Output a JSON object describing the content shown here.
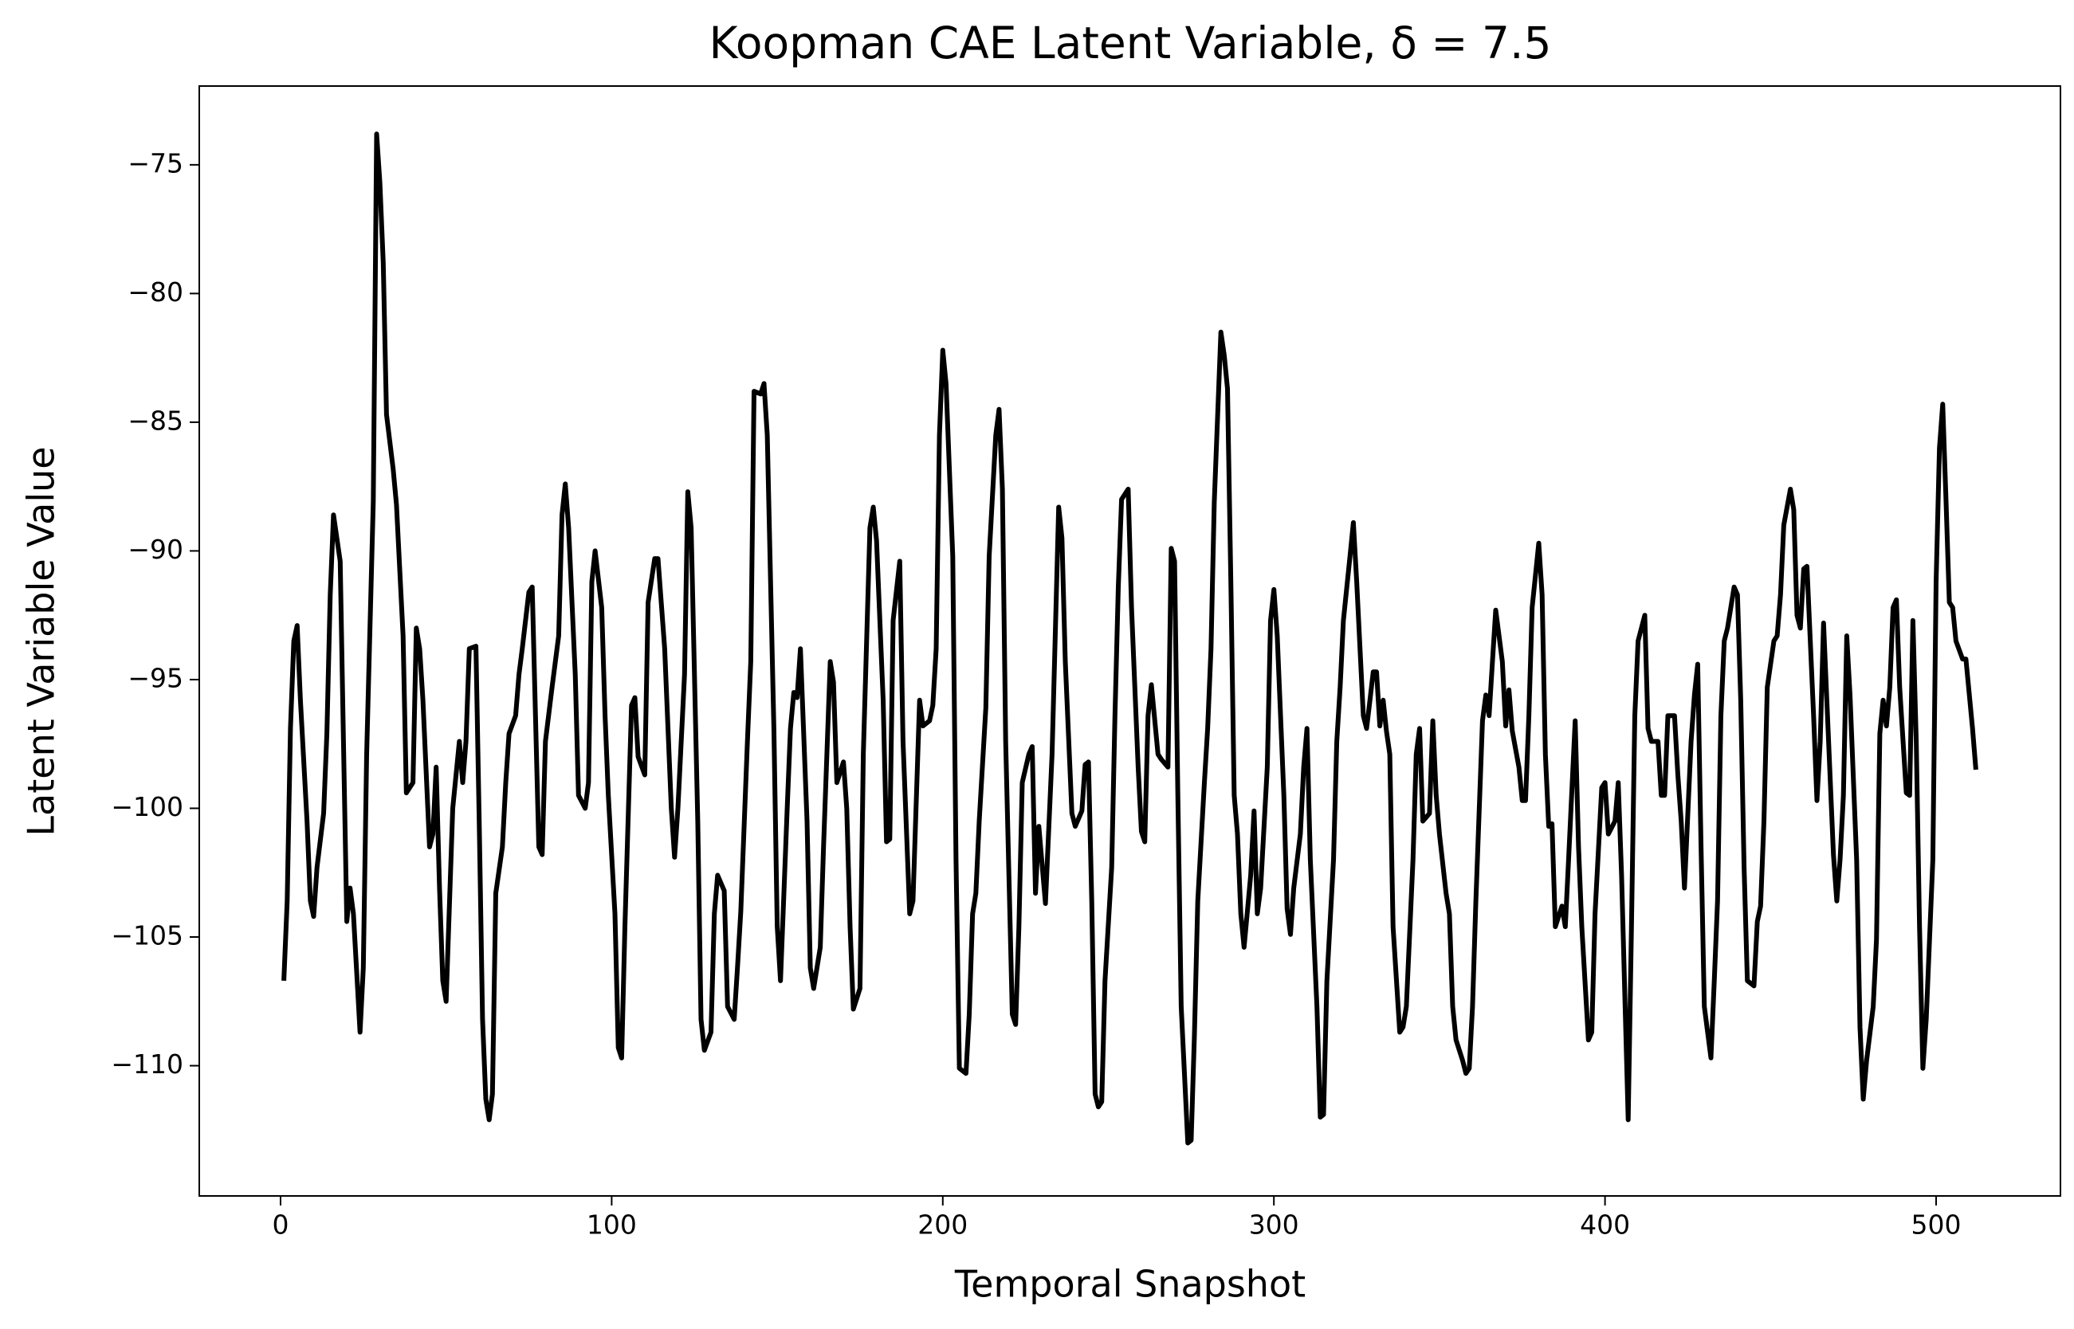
{
  "chart_data": {
    "type": "line",
    "title": "Koopman CAE Latent Variable, δ = 7.5",
    "xlabel": "Temporal Snapshot",
    "ylabel": "Latent Variable Value",
    "xlim": [
      -24.55,
      537.55
    ],
    "ylim": [
      -115.06,
      -71.94
    ],
    "xticks": [
      0,
      100,
      200,
      300,
      400,
      500
    ],
    "yticks": [
      {
        "value": -110,
        "label": "−110"
      },
      {
        "value": -105,
        "label": "−105"
      },
      {
        "value": -100,
        "label": "−100"
      },
      {
        "value": -95,
        "label": "−95"
      },
      {
        "value": -90,
        "label": "−90"
      },
      {
        "value": -85,
        "label": "−85"
      },
      {
        "value": -80,
        "label": "−80"
      },
      {
        "value": -75,
        "label": "−75"
      }
    ],
    "series": [
      {
        "color": "#000000",
        "x": [
          1,
          2,
          3,
          4,
          5,
          6,
          8,
          9,
          10,
          11,
          13,
          14,
          15,
          16,
          18,
          19,
          20,
          21,
          22,
          24,
          25,
          26,
          28,
          29,
          30,
          31,
          32,
          34,
          35,
          37,
          38,
          40,
          41,
          42,
          43,
          45,
          46,
          47,
          48,
          49,
          50,
          52,
          54,
          55,
          56,
          57,
          59,
          60,
          61,
          62,
          63,
          64,
          65,
          67,
          68,
          69,
          71,
          72,
          73,
          75,
          76,
          77,
          78,
          79,
          80,
          82,
          84,
          85,
          86,
          87,
          89,
          90,
          92,
          93,
          94,
          95,
          97,
          98,
          99,
          101,
          102,
          103,
          104,
          106,
          107,
          108,
          110,
          111,
          113,
          114,
          116,
          118,
          119,
          120,
          122,
          123,
          124,
          126,
          127,
          128,
          130,
          131,
          132,
          134,
          135,
          137,
          138,
          139,
          141,
          142,
          143,
          145,
          146,
          147,
          149,
          150,
          151,
          153,
          154,
          155,
          156,
          157,
          159,
          160,
          161,
          163,
          164,
          166,
          167,
          168,
          170,
          171,
          172,
          173,
          175,
          176,
          178,
          179,
          180,
          182,
          183,
          184,
          185,
          187,
          188,
          190,
          191,
          193,
          194,
          196,
          197,
          198,
          199,
          200,
          201,
          203,
          204,
          205,
          207,
          208,
          209,
          210,
          211,
          213,
          214,
          216,
          217,
          218,
          219,
          221,
          222,
          223,
          224,
          226,
          227,
          228,
          229,
          231,
          233,
          235,
          236,
          237,
          239,
          240,
          242,
          243,
          244,
          245,
          246,
          247,
          248,
          249,
          251,
          252,
          253,
          254,
          256,
          257,
          259,
          260,
          261,
          262,
          263,
          265,
          266,
          268,
          269,
          270,
          271,
          272,
          274,
          275,
          276,
          277,
          279,
          280,
          281,
          282,
          284,
          285,
          286,
          287,
          288,
          289,
          290,
          291,
          293,
          294,
          295,
          296,
          298,
          299,
          300,
          301,
          303,
          304,
          305,
          306,
          308,
          309,
          310,
          311,
          313,
          314,
          315,
          316,
          318,
          319,
          320,
          321,
          323,
          324,
          325,
          327,
          328,
          329,
          330,
          331,
          332,
          333,
          334,
          335,
          336,
          338,
          339,
          340,
          342,
          343,
          344,
          345,
          347,
          348,
          349,
          350,
          352,
          353,
          354,
          355,
          357,
          358,
          359,
          360,
          361,
          363,
          364,
          365,
          366,
          367,
          369,
          370,
          371,
          372,
          374,
          375,
          376,
          377,
          378,
          380,
          381,
          382,
          383,
          384,
          385,
          387,
          388,
          389,
          391,
          392,
          393,
          395,
          396,
          397,
          399,
          400,
          401,
          403,
          404,
          405,
          407,
          408,
          409,
          410,
          412,
          413,
          414,
          416,
          417,
          418,
          419,
          421,
          422,
          423,
          424,
          426,
          427,
          428,
          429,
          430,
          432,
          433,
          434,
          435,
          436,
          437,
          439,
          440,
          441,
          442,
          443,
          445,
          446,
          447,
          448,
          449,
          451,
          452,
          453,
          454,
          456,
          457,
          458,
          459,
          460,
          461,
          463,
          464,
          465,
          466,
          467,
          469,
          470,
          471,
          472,
          473,
          474,
          476,
          477,
          478,
          479,
          481,
          482,
          483,
          484,
          485,
          486,
          487,
          488,
          489,
          491,
          492,
          493,
          494,
          495,
          496,
          497,
          499,
          500,
          501,
          502,
          503,
          504,
          505,
          506,
          508,
          509,
          511,
          512
        ],
        "values": [
          -106.7,
          -103.6,
          -96.9,
          -93.5,
          -92.9,
          -95.8,
          -100.5,
          -103.6,
          -104.2,
          -102.3,
          -100.2,
          -97.1,
          -91.7,
          -88.6,
          -90.4,
          -97.4,
          -104.4,
          -103.1,
          -104.1,
          -108.7,
          -106.2,
          -97.9,
          -88.1,
          -73.8,
          -75.7,
          -78.8,
          -84.7,
          -86.8,
          -88.2,
          -93.3,
          -99.4,
          -99.0,
          -93.0,
          -93.8,
          -95.8,
          -101.5,
          -101.0,
          -98.4,
          -103.1,
          -106.7,
          -107.5,
          -100.0,
          -97.4,
          -99.0,
          -97.4,
          -93.8,
          -93.7,
          -100.5,
          -108.2,
          -111.3,
          -112.1,
          -111.1,
          -103.3,
          -101.5,
          -99.0,
          -97.1,
          -96.4,
          -94.8,
          -93.8,
          -91.6,
          -91.4,
          -96.4,
          -101.5,
          -101.8,
          -97.4,
          -95.3,
          -93.3,
          -88.6,
          -87.4,
          -89.1,
          -94.8,
          -99.5,
          -100.0,
          -99.0,
          -91.2,
          -90.0,
          -92.2,
          -96.4,
          -99.5,
          -104.1,
          -109.3,
          -109.7,
          -104.6,
          -96.0,
          -95.7,
          -98.0,
          -98.7,
          -92.0,
          -90.3,
          -90.3,
          -93.8,
          -100.0,
          -101.9,
          -100.0,
          -94.8,
          -87.7,
          -89.1,
          -100.5,
          -108.2,
          -109.4,
          -108.7,
          -104.1,
          -102.6,
          -103.2,
          -107.7,
          -108.2,
          -106.2,
          -104.0,
          -97.4,
          -94.3,
          -83.8,
          -83.9,
          -83.5,
          -85.5,
          -96.9,
          -104.6,
          -106.7,
          -100.0,
          -96.9,
          -95.5,
          -95.7,
          -93.8,
          -100.5,
          -106.2,
          -107.0,
          -105.4,
          -101.5,
          -94.3,
          -95.1,
          -99.0,
          -98.2,
          -100.0,
          -104.6,
          -107.8,
          -107.0,
          -97.9,
          -89.1,
          -88.3,
          -89.6,
          -95.8,
          -101.3,
          -101.2,
          -92.7,
          -90.4,
          -97.4,
          -104.1,
          -103.6,
          -95.8,
          -96.8,
          -96.6,
          -96.0,
          -93.8,
          -85.5,
          -82.2,
          -83.5,
          -90.2,
          -102.0,
          -110.1,
          -110.3,
          -108.0,
          -104.1,
          -103.3,
          -100.5,
          -96.1,
          -90.2,
          -85.5,
          -84.5,
          -87.6,
          -97.4,
          -108.0,
          -108.4,
          -104.6,
          -99.0,
          -97.9,
          -97.6,
          -103.3,
          -100.7,
          -103.7,
          -97.9,
          -88.3,
          -89.5,
          -94.3,
          -100.2,
          -100.7,
          -100.1,
          -98.3,
          -98.2,
          -103.6,
          -111.1,
          -111.6,
          -111.4,
          -106.7,
          -102.3,
          -96.4,
          -91.4,
          -88.0,
          -87.6,
          -92.2,
          -98.4,
          -100.9,
          -101.3,
          -96.4,
          -95.2,
          -97.9,
          -98.1,
          -98.4,
          -89.9,
          -90.4,
          -99.5,
          -107.7,
          -113.0,
          -112.9,
          -108.8,
          -103.6,
          -99.0,
          -96.9,
          -93.8,
          -88.1,
          -81.5,
          -82.4,
          -83.7,
          -91.2,
          -99.5,
          -101.0,
          -104.1,
          -105.4,
          -102.6,
          -100.1,
          -104.1,
          -103.1,
          -98.4,
          -92.7,
          -91.5,
          -93.3,
          -99.5,
          -103.9,
          -104.9,
          -103.1,
          -101.0,
          -98.4,
          -96.9,
          -102.0,
          -107.7,
          -112.0,
          -111.9,
          -106.7,
          -102.0,
          -97.4,
          -95.3,
          -92.7,
          -90.2,
          -88.9,
          -91.2,
          -96.4,
          -96.9,
          -95.8,
          -94.7,
          -94.7,
          -96.8,
          -95.8,
          -97.0,
          -97.9,
          -104.6,
          -108.7,
          -108.5,
          -107.7,
          -102.0,
          -97.9,
          -96.9,
          -100.5,
          -100.2,
          -96.6,
          -99.5,
          -101.0,
          -103.3,
          -104.1,
          -107.7,
          -109.0,
          -109.8,
          -110.3,
          -110.1,
          -107.7,
          -103.6,
          -96.6,
          -95.6,
          -96.4,
          -94.3,
          -92.3,
          -94.3,
          -96.8,
          -95.4,
          -97.0,
          -98.4,
          -99.7,
          -99.7,
          -96.4,
          -92.2,
          -89.7,
          -91.7,
          -97.9,
          -100.7,
          -100.6,
          -104.6,
          -103.8,
          -104.6,
          -102.0,
          -96.6,
          -101.5,
          -104.6,
          -109.0,
          -108.7,
          -104.1,
          -99.2,
          -99.0,
          -101.0,
          -100.5,
          -99.0,
          -102.6,
          -112.1,
          -104.6,
          -96.4,
          -93.5,
          -92.5,
          -96.9,
          -97.4,
          -97.4,
          -99.5,
          -99.5,
          -96.4,
          -96.4,
          -98.7,
          -100.5,
          -103.1,
          -97.4,
          -95.6,
          -94.4,
          -101.5,
          -107.7,
          -109.7,
          -106.7,
          -103.6,
          -96.4,
          -93.5,
          -93.0,
          -91.4,
          -91.7,
          -95.8,
          -102.3,
          -106.7,
          -106.9,
          -104.4,
          -103.8,
          -100.5,
          -95.3,
          -93.5,
          -93.3,
          -91.7,
          -89.0,
          -87.6,
          -88.4,
          -92.5,
          -93.0,
          -90.7,
          -90.6,
          -96.4,
          -99.7,
          -97.4,
          -92.8,
          -95.8,
          -101.8,
          -103.6,
          -102.0,
          -99.5,
          -93.3,
          -95.6,
          -102.0,
          -108.5,
          -111.3,
          -109.8,
          -107.7,
          -105.1,
          -97.1,
          -95.8,
          -96.8,
          -95.3,
          -92.2,
          -91.9,
          -95.3,
          -99.4,
          -99.5,
          -92.7,
          -97.4,
          -104.6,
          -110.1,
          -108.2,
          -102.0,
          -91.2,
          -86.0,
          -84.3,
          -88.1,
          -92.0,
          -92.2,
          -93.5,
          -94.2,
          -94.2,
          -96.9,
          -98.5
        ]
      }
    ]
  }
}
